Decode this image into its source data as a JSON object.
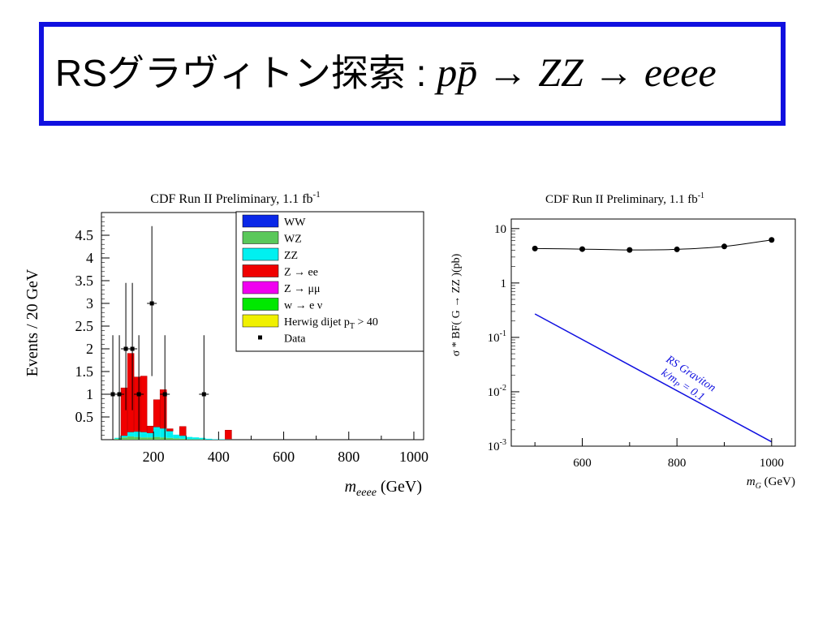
{
  "slide": {
    "title": "RSグラヴィトン探索 : ",
    "formula": "pp̄ → ZZ → eeee",
    "border_color": "#1010e0"
  },
  "chart_data": [
    {
      "type": "bar",
      "stacked": true,
      "title": "CDF Run II Preliminary, 1.1 fb",
      "title_sup": "-1",
      "xlabel": "m",
      "xlabel_sub": "eeee",
      "xlabel_unit": " (GeV)",
      "ylabel": "Events / 20 GeV",
      "xlim": [
        40,
        1030
      ],
      "ylim": [
        0,
        5
      ],
      "x_ticks": [
        200,
        400,
        600,
        800,
        1000
      ],
      "y_ticks": [
        0.5,
        1,
        1.5,
        2,
        2.5,
        3,
        3.5,
        4,
        4.5
      ],
      "y_tick_labels": [
        "0.5",
        "1",
        "1.5",
        "2",
        "2.5",
        "3",
        "3.5",
        "4",
        "4.5"
      ],
      "bin_width": 20,
      "bins": [
        80,
        100,
        120,
        140,
        160,
        180,
        200,
        220,
        240,
        260,
        280,
        300,
        320,
        340,
        360,
        380,
        400,
        420,
        440
      ],
      "series": [
        {
          "name": "WW",
          "color": "#0a28e8",
          "values": [
            0,
            0,
            0,
            0,
            0,
            0,
            0,
            0,
            0,
            0,
            0,
            0,
            0,
            0,
            0,
            0,
            0,
            0,
            0
          ]
        },
        {
          "name": "WZ",
          "color": "#5ac85a",
          "values": [
            0.02,
            0.05,
            0.07,
            0.06,
            0.05,
            0.05,
            0.06,
            0.05,
            0.04,
            0.03,
            0.02,
            0.01,
            0.01,
            0.01,
            0,
            0,
            0,
            0,
            0
          ]
        },
        {
          "name": "ZZ",
          "color": "#00f0f0",
          "values": [
            0.02,
            0.04,
            0.1,
            0.12,
            0.12,
            0.1,
            0.22,
            0.2,
            0.15,
            0.08,
            0.07,
            0.05,
            0.04,
            0.03,
            0.02,
            0.01,
            0.01,
            0.01,
            0
          ]
        },
        {
          "name": "Z → ee",
          "color": "#f00000",
          "values": [
            0,
            1.05,
            1.73,
            1.2,
            1.23,
            0.15,
            0.6,
            0.85,
            0.05,
            0,
            0.2,
            0,
            0,
            0,
            0,
            0,
            0,
            0.2,
            0
          ]
        },
        {
          "name": "Z → μμ",
          "color": "#f000f0",
          "values": [
            0,
            0,
            0,
            0,
            0,
            0,
            0,
            0,
            0,
            0,
            0,
            0,
            0,
            0,
            0,
            0,
            0,
            0,
            0
          ]
        },
        {
          "name": "w → e ν",
          "color": "#00e800",
          "values": [
            0,
            0,
            0,
            0,
            0,
            0,
            0,
            0,
            0,
            0,
            0,
            0,
            0,
            0,
            0,
            0,
            0,
            0,
            0
          ]
        },
        {
          "name": "Herwig dijet p",
          "name_sub": "T",
          "name_suffix": " > 40",
          "color": "#f0f000",
          "values": [
            0,
            0,
            0,
            0,
            0,
            0,
            0,
            0,
            0,
            0,
            0,
            0,
            0,
            0,
            0,
            0,
            0,
            0,
            0
          ]
        }
      ],
      "data_points": {
        "name": "Data",
        "x": [
          75,
          95,
          115,
          135,
          155,
          195,
          235,
          355
        ],
        "y": [
          1,
          1,
          2,
          2,
          1,
          3,
          1,
          1
        ],
        "err_low": [
          1,
          1,
          1.35,
          1.35,
          1,
          1.6,
          1,
          1
        ],
        "err_high": [
          1.3,
          1.3,
          1.45,
          1.45,
          1.3,
          1.7,
          1.3,
          1.3
        ]
      },
      "legend_position": "top-right"
    },
    {
      "type": "line",
      "title": "CDF Run II Preliminary, 1.1 fb",
      "title_sup": "-1",
      "xlabel": "m",
      "xlabel_sub": "G",
      "xlabel_unit": " (GeV)",
      "ylabel": "σ * BF( G → ZZ )(pb)",
      "log_y": true,
      "xlim": [
        450,
        1050
      ],
      "ylim": [
        0.001,
        15
      ],
      "x_ticks": [
        600,
        800,
        1000
      ],
      "y_ticks": [
        10,
        1,
        0.1,
        0.01,
        0.001
      ],
      "y_tick_labels": [
        "10",
        "1",
        "10-1",
        "10-2",
        "10-3"
      ],
      "series": [
        {
          "name": "limit",
          "color": "#000000",
          "marker": "circle",
          "x": [
            500,
            600,
            700,
            800,
            900,
            1000
          ],
          "y": [
            4.3,
            4.2,
            4.05,
            4.15,
            4.7,
            6.2
          ]
        },
        {
          "name": "RS Graviton",
          "color": "#1010e0",
          "x": [
            500,
            1000
          ],
          "y": [
            0.27,
            0.0012
          ]
        }
      ],
      "annotation": {
        "line1": "RS Graviton",
        "line2": "k/m",
        "line2_sub": "P",
        "line2_suffix": " = 0.1"
      }
    }
  ]
}
